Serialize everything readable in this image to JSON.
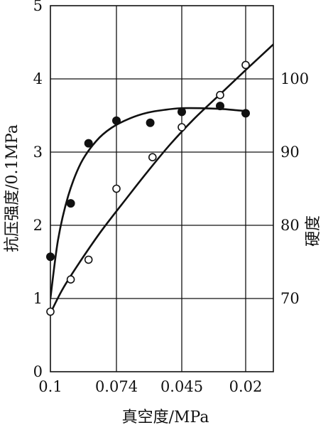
{
  "chart_data": {
    "type": "scatter",
    "title": "",
    "xlabel": "真空度/MPa",
    "ylabel_left": "抗压强度/0.1MPa",
    "ylabel_right": "硬度",
    "x_ticks": [
      "0.1",
      "0.074",
      "0.045",
      "0.02"
    ],
    "y_left_ticks": [
      "0",
      "1",
      "2",
      "3",
      "4",
      "5"
    ],
    "y_right_ticks": [
      "70",
      "80",
      "90",
      "100"
    ],
    "ylim_left": [
      0,
      5
    ],
    "ylim_right": [
      60,
      110
    ],
    "grid": true,
    "series": [
      {
        "marker": "filled-circle",
        "axis": "left",
        "points": [
          [
            0.1,
            1.57
          ],
          [
            0.092,
            2.3
          ],
          [
            0.085,
            3.12
          ],
          [
            0.074,
            3.43
          ],
          [
            0.059,
            3.4
          ],
          [
            0.045,
            3.55
          ],
          [
            0.03,
            3.63
          ],
          [
            0.02,
            3.53
          ]
        ],
        "fit_curve": [
          [
            0.1,
            1.0
          ],
          [
            0.097,
            1.8
          ],
          [
            0.093,
            2.4
          ],
          [
            0.088,
            2.85
          ],
          [
            0.082,
            3.15
          ],
          [
            0.076,
            3.33
          ],
          [
            0.068,
            3.46
          ],
          [
            0.06,
            3.54
          ],
          [
            0.052,
            3.58
          ],
          [
            0.045,
            3.6
          ],
          [
            0.038,
            3.6
          ],
          [
            0.03,
            3.59
          ],
          [
            0.023,
            3.57
          ],
          [
            0.02,
            3.56
          ]
        ]
      },
      {
        "marker": "open-circle",
        "axis": "right",
        "points": [
          [
            0.1,
            68.2
          ],
          [
            0.092,
            72.6
          ],
          [
            0.085,
            75.3
          ],
          [
            0.074,
            85.0
          ],
          [
            0.058,
            89.3
          ],
          [
            0.045,
            93.4
          ],
          [
            0.03,
            97.8
          ],
          [
            0.02,
            101.9
          ]
        ],
        "fit_curve": [
          [
            0.1,
            68.0
          ],
          [
            0.095,
            71.4
          ],
          [
            0.088,
            75.2
          ],
          [
            0.08,
            79.2
          ],
          [
            0.07,
            83.5
          ],
          [
            0.06,
            87.4
          ],
          [
            0.05,
            91.1
          ],
          [
            0.04,
            94.6
          ],
          [
            0.03,
            97.9
          ],
          [
            0.02,
            101.2
          ],
          [
            0.008,
            105.1
          ]
        ]
      }
    ]
  },
  "colors": {
    "ink": "#111111",
    "background": "#ffffff"
  }
}
